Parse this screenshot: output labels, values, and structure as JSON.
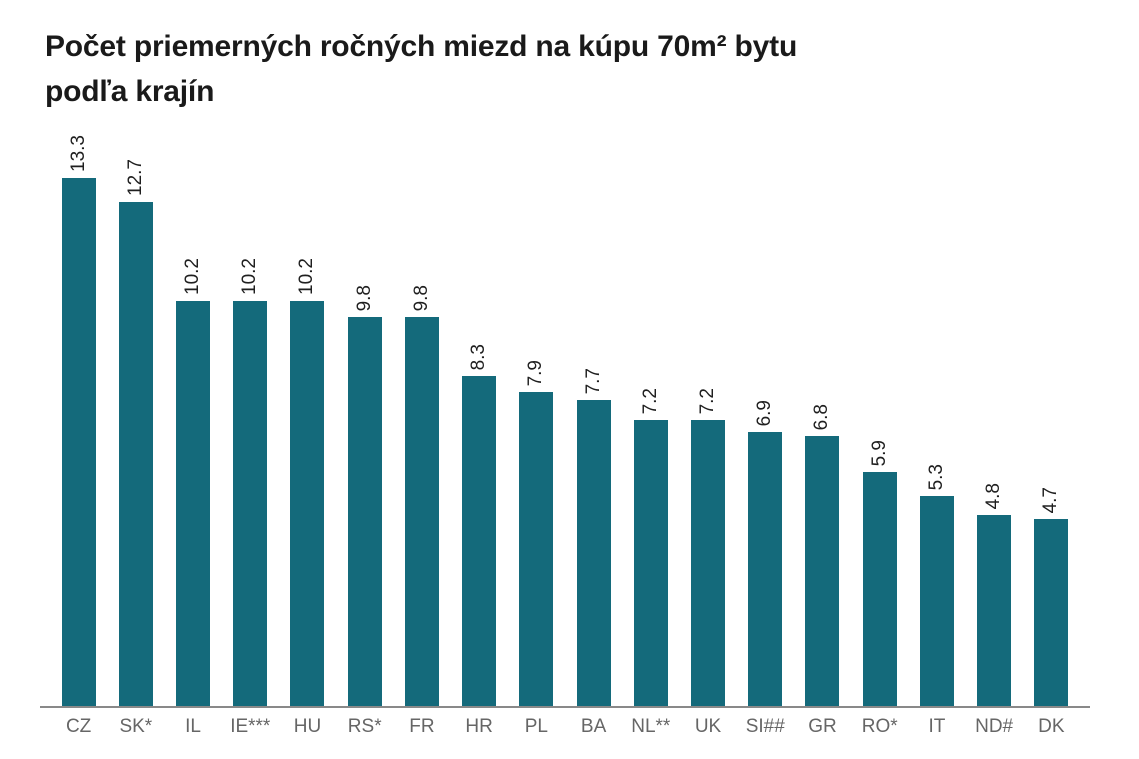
{
  "page": {
    "title_line1": "Počet priemerných ročných miezd na kúpu 70m² bytu",
    "title_line2": "podľa krajín"
  },
  "colors": {
    "bar": "#146A7B",
    "title_text": "#1A1A1A",
    "value_label": "#1F1F1F",
    "axis_label": "#666666",
    "axis_line": "#898989",
    "background": "#FFFFFF"
  },
  "chart_data": {
    "type": "bar",
    "title": "Počet priemerných ročných miezd na kúpu 70m² bytu podľa krajín",
    "categories": [
      "CZ",
      "SK*",
      "IL",
      "IE***",
      "HU",
      "RS*",
      "FR",
      "HR",
      "PL",
      "BA",
      "NL**",
      "UK",
      "SI##",
      "GR",
      "RO*",
      "IT",
      "ND#",
      "DK"
    ],
    "values": [
      13.3,
      12.7,
      10.2,
      10.2,
      10.2,
      9.8,
      9.8,
      8.3,
      7.9,
      7.7,
      7.2,
      7.2,
      6.9,
      6.8,
      5.9,
      5.3,
      4.8,
      4.7
    ],
    "value_labels_rotation_deg": -90,
    "xlabel": "",
    "ylabel": "",
    "ylim": [
      0,
      13.3
    ],
    "grid": false,
    "legend": false,
    "y_axis_visible": false,
    "bar_color": "#146A7B"
  }
}
